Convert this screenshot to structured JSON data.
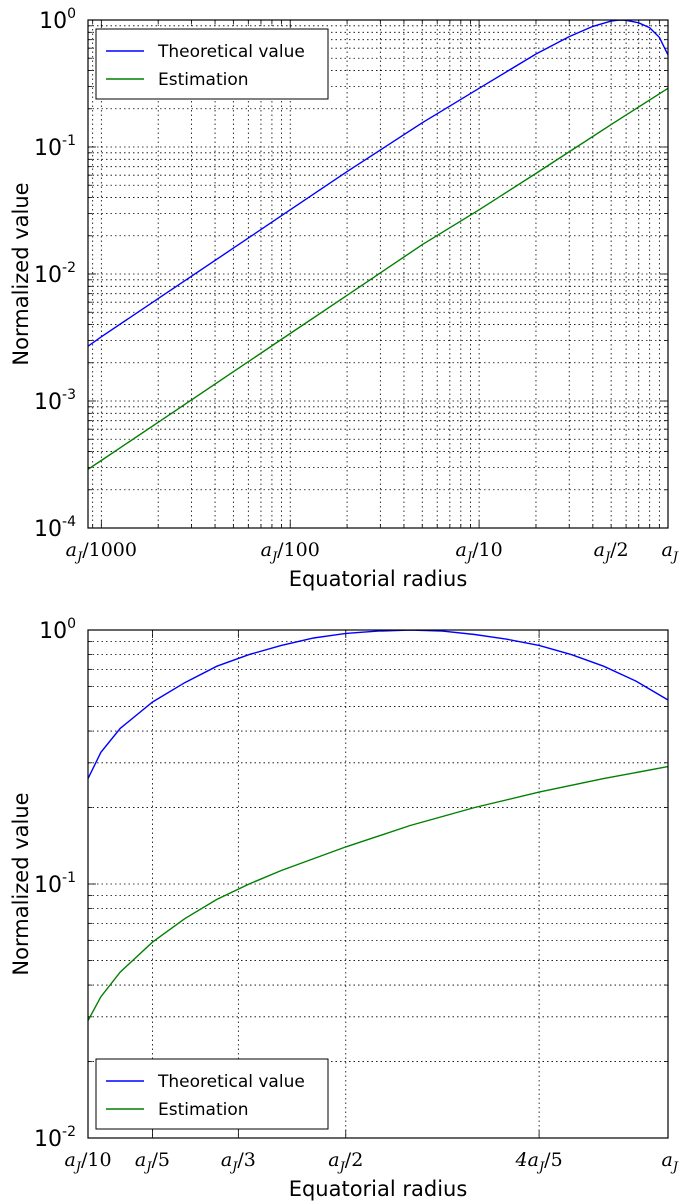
{
  "chart_data": [
    {
      "type": "line",
      "xscale": "log",
      "yscale": "log",
      "xlim": [
        0.00085,
        1.0
      ],
      "ylim": [
        0.0001,
        1.0
      ],
      "xlabel": "Equatorial radius",
      "ylabel": "Normalized value",
      "grid": true,
      "legend_position": "top-left",
      "x_ticks": [
        {
          "value": 0.001,
          "label": "a_J/1000"
        },
        {
          "value": 0.01,
          "label": "a_J/100"
        },
        {
          "value": 0.1,
          "label": "a_J/10"
        },
        {
          "value": 0.5,
          "label": "a_J/2"
        },
        {
          "value": 1.0,
          "label": "a_J"
        }
      ],
      "y_ticks": [
        {
          "value": 0.0001,
          "label": "10",
          "exp": "-4"
        },
        {
          "value": 0.001,
          "label": "10",
          "exp": "-3"
        },
        {
          "value": 0.01,
          "label": "10",
          "exp": "-2"
        },
        {
          "value": 0.1,
          "label": "10",
          "exp": "-1"
        },
        {
          "value": 1.0,
          "label": "10",
          "exp": "0"
        }
      ],
      "series": [
        {
          "name": "Theoretical value",
          "color": "#0000ff",
          "x": [
            0.00085,
            0.001,
            0.002,
            0.005,
            0.01,
            0.02,
            0.05,
            0.1,
            0.2,
            0.3,
            0.4,
            0.5,
            0.55,
            0.6,
            0.7,
            0.8,
            0.9,
            1.0
          ],
          "y": [
            0.0027,
            0.0032,
            0.0064,
            0.016,
            0.032,
            0.064,
            0.155,
            0.29,
            0.54,
            0.74,
            0.89,
            0.98,
            1.0,
            0.995,
            0.95,
            0.87,
            0.73,
            0.53
          ]
        },
        {
          "name": "Estimation",
          "color": "#008000",
          "x": [
            0.00085,
            0.001,
            0.002,
            0.005,
            0.01,
            0.02,
            0.05,
            0.1,
            0.2,
            0.5,
            1.0
          ],
          "y": [
            0.00029,
            0.00034,
            0.00068,
            0.0017,
            0.0034,
            0.0068,
            0.017,
            0.032,
            0.062,
            0.15,
            0.29
          ]
        }
      ]
    },
    {
      "type": "line",
      "xscale": "linear",
      "yscale": "log",
      "xlim": [
        0.1,
        1.0
      ],
      "ylim": [
        0.01,
        1.0
      ],
      "xlabel": "Equatorial radius",
      "ylabel": "Normalized value",
      "grid": true,
      "legend_position": "bottom-left",
      "x_ticks": [
        {
          "value": 0.1,
          "label": "a_J/10"
        },
        {
          "value": 0.2,
          "label": "a_J/5"
        },
        {
          "value": 0.3333,
          "label": "a_J/3"
        },
        {
          "value": 0.5,
          "label": "a_J/2"
        },
        {
          "value": 0.8,
          "label": "4a_J/5"
        },
        {
          "value": 1.0,
          "label": "a_J"
        }
      ],
      "y_ticks": [
        {
          "value": 0.01,
          "label": "10",
          "exp": "-2"
        },
        {
          "value": 0.1,
          "label": "10",
          "exp": "-1"
        },
        {
          "value": 1.0,
          "label": "10",
          "exp": "0"
        }
      ],
      "series": [
        {
          "name": "Theoretical value",
          "color": "#0000ff",
          "x": [
            0.1,
            0.12,
            0.15,
            0.2,
            0.25,
            0.3,
            0.35,
            0.4,
            0.45,
            0.5,
            0.55,
            0.6,
            0.65,
            0.7,
            0.75,
            0.8,
            0.85,
            0.9,
            0.95,
            1.0
          ],
          "y": [
            0.26,
            0.33,
            0.41,
            0.52,
            0.62,
            0.72,
            0.8,
            0.87,
            0.93,
            0.97,
            0.99,
            1.0,
            0.99,
            0.96,
            0.92,
            0.87,
            0.8,
            0.72,
            0.63,
            0.53
          ]
        },
        {
          "name": "Estimation",
          "color": "#008000",
          "x": [
            0.1,
            0.12,
            0.15,
            0.2,
            0.25,
            0.3,
            0.35,
            0.4,
            0.5,
            0.6,
            0.7,
            0.8,
            0.9,
            1.0
          ],
          "y": [
            0.029,
            0.036,
            0.045,
            0.059,
            0.073,
            0.087,
            0.1,
            0.113,
            0.14,
            0.17,
            0.2,
            0.23,
            0.26,
            0.29
          ]
        }
      ]
    }
  ]
}
